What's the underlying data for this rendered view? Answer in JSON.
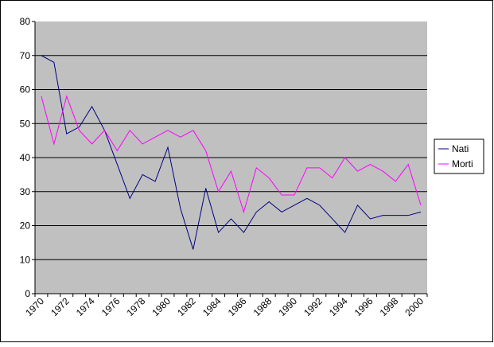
{
  "chart_data": {
    "type": "line",
    "categories": [
      "1970",
      null,
      "1972",
      null,
      "1974",
      null,
      "1976",
      null,
      "1978",
      null,
      "1980",
      null,
      "1982",
      null,
      "1984",
      null,
      "1986",
      null,
      "1988",
      null,
      "1990",
      null,
      "1992",
      null,
      "1994",
      null,
      "1996",
      null,
      "1998",
      null,
      "2000"
    ],
    "series": [
      {
        "name": "Nati",
        "color": "#000080",
        "values": [
          70,
          68,
          47,
          49,
          55,
          48,
          38,
          28,
          35,
          33,
          43,
          25,
          13,
          31,
          18,
          22,
          18,
          24,
          27,
          24,
          26,
          28,
          26,
          22,
          18,
          26,
          22,
          23,
          23,
          23,
          24
        ]
      },
      {
        "name": "Morti",
        "color": "#ff00ff",
        "values": [
          58,
          44,
          58,
          48,
          44,
          48,
          42,
          48,
          44,
          46,
          48,
          46,
          48,
          42,
          30,
          36,
          24,
          37,
          34,
          29,
          29,
          37,
          37,
          34,
          40,
          36,
          38,
          36,
          33,
          38,
          26
        ]
      }
    ],
    "ylim": [
      0,
      80
    ],
    "yticks": [
      0,
      10,
      20,
      30,
      40,
      50,
      60,
      70,
      80
    ],
    "grid": true,
    "legend": "right"
  }
}
